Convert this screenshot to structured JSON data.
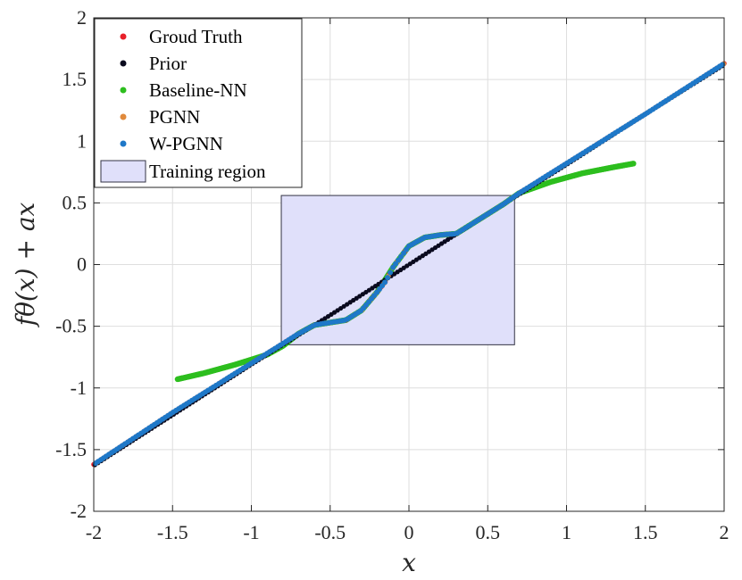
{
  "chart_data": {
    "type": "scatter",
    "xlabel": "x",
    "ylabel": "fθ(x) + ax",
    "xlim": [
      -2,
      2
    ],
    "ylim": [
      -2,
      2
    ],
    "x_ticks": [
      -2,
      -1.5,
      -1,
      -0.5,
      0,
      0.5,
      1,
      1.5,
      2
    ],
    "y_ticks": [
      -2,
      -1.5,
      -1,
      -0.5,
      0,
      0.5,
      1,
      1.5,
      2
    ],
    "x_tick_labels": [
      "-2",
      "-1.5",
      "-1",
      "-0.5",
      "0",
      "0.5",
      "1",
      "1.5",
      "2"
    ],
    "y_tick_labels": [
      "-2",
      "-1.5",
      "-1",
      "-0.5",
      "0",
      "0.5",
      "1",
      "1.5",
      "2"
    ],
    "grid": true,
    "legend_position": "top-left",
    "training_region": {
      "label": "Training region",
      "x": [
        -0.81,
        0.67
      ],
      "y": [
        -0.65,
        0.56
      ],
      "color": "#E0E0FA"
    },
    "series": [
      {
        "name": "Groud Truth",
        "color": "#E8202A",
        "x": [
          -2.0,
          -1.5,
          -1.0,
          -0.8,
          -0.7,
          -0.6,
          -0.5,
          -0.4,
          -0.3,
          -0.2,
          -0.15,
          -0.1,
          0.0,
          0.1,
          0.2,
          0.3,
          0.4,
          0.5,
          0.6,
          0.7,
          0.8,
          1.0,
          1.5,
          2.0
        ],
        "y": [
          -1.62,
          -1.2,
          -0.8,
          -0.64,
          -0.56,
          -0.49,
          -0.47,
          -0.45,
          -0.37,
          -0.22,
          -0.14,
          -0.02,
          0.15,
          0.22,
          0.24,
          0.25,
          0.33,
          0.41,
          0.49,
          0.58,
          0.66,
          0.82,
          1.22,
          1.63
        ]
      },
      {
        "name": "Prior",
        "color": "#0A0A1E",
        "x": [
          -2.0,
          -1.5,
          -1.0,
          -0.5,
          0.0,
          0.5,
          1.0,
          1.5,
          2.0
        ],
        "y": [
          -1.63,
          -1.22,
          -0.81,
          -0.41,
          0.0,
          0.41,
          0.81,
          1.22,
          1.62
        ]
      },
      {
        "name": "Baseline-NN",
        "color": "#2DBE1E",
        "x": [
          -1.47,
          -1.3,
          -1.1,
          -0.9,
          -0.8,
          -0.7,
          -0.6,
          -0.5,
          -0.4,
          -0.3,
          -0.2,
          -0.1,
          0.0,
          0.1,
          0.2,
          0.3,
          0.4,
          0.5,
          0.6,
          0.7,
          0.9,
          1.1,
          1.3,
          1.43
        ],
        "y": [
          -0.93,
          -0.88,
          -0.81,
          -0.73,
          -0.66,
          -0.56,
          -0.49,
          -0.47,
          -0.45,
          -0.37,
          -0.22,
          -0.02,
          0.15,
          0.22,
          0.24,
          0.25,
          0.33,
          0.41,
          0.49,
          0.58,
          0.67,
          0.74,
          0.79,
          0.82
        ]
      },
      {
        "name": "PGNN",
        "color": "#E08A3C",
        "x": [
          -2.0,
          -1.5,
          -1.0,
          -0.8,
          -0.7,
          -0.6,
          -0.5,
          -0.4,
          -0.3,
          -0.2,
          -0.15,
          -0.1,
          0.0,
          0.1,
          0.2,
          0.3,
          0.4,
          0.5,
          0.6,
          0.7,
          0.8,
          1.0,
          1.5,
          2.0
        ],
        "y": [
          -1.62,
          -1.2,
          -0.8,
          -0.64,
          -0.56,
          -0.49,
          -0.47,
          -0.45,
          -0.37,
          -0.22,
          -0.14,
          -0.02,
          0.15,
          0.22,
          0.24,
          0.25,
          0.33,
          0.41,
          0.49,
          0.58,
          0.66,
          0.82,
          1.22,
          1.63
        ]
      },
      {
        "name": "W-PGNN",
        "color": "#1E78C8",
        "x": [
          -2.0,
          -1.5,
          -1.0,
          -0.8,
          -0.7,
          -0.6,
          -0.5,
          -0.4,
          -0.3,
          -0.2,
          -0.15,
          -0.1,
          0.0,
          0.1,
          0.2,
          0.3,
          0.4,
          0.5,
          0.6,
          0.7,
          0.8,
          1.0,
          1.5,
          2.0
        ],
        "y": [
          -1.62,
          -1.2,
          -0.8,
          -0.64,
          -0.56,
          -0.49,
          -0.47,
          -0.45,
          -0.37,
          -0.22,
          -0.14,
          -0.02,
          0.15,
          0.22,
          0.24,
          0.25,
          0.33,
          0.41,
          0.49,
          0.58,
          0.66,
          0.82,
          1.22,
          1.63
        ]
      }
    ]
  }
}
